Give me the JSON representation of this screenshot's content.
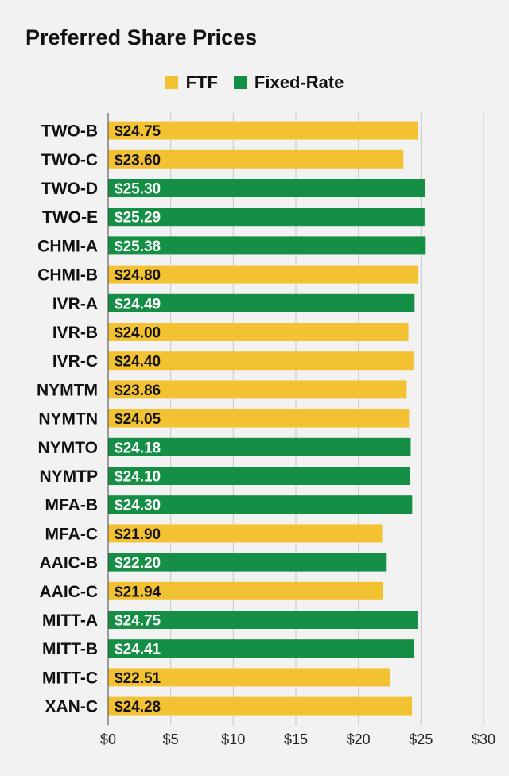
{
  "chart_data": {
    "type": "bar",
    "orientation": "horizontal",
    "title": "Preferred Share Prices",
    "legend": [
      {
        "name": "FTF",
        "color": "#f2c232"
      },
      {
        "name": "Fixed-Rate",
        "color": "#158f45"
      }
    ],
    "legend_position": "top-center",
    "categories": [
      "TWO-B",
      "TWO-C",
      "TWO-D",
      "TWO-E",
      "CHMI-A",
      "CHMI-B",
      "IVR-A",
      "IVR-B",
      "IVR-C",
      "NYMTM",
      "NYMTN",
      "NYMTO",
      "NYMTP",
      "MFA-B",
      "MFA-C",
      "AAIC-B",
      "AAIC-C",
      "MITT-A",
      "MITT-B",
      "MITT-C",
      "XAN-C"
    ],
    "values": [
      24.75,
      23.6,
      25.3,
      25.29,
      25.38,
      24.8,
      24.49,
      24.0,
      24.4,
      23.86,
      24.05,
      24.18,
      24.1,
      24.3,
      21.9,
      22.2,
      21.94,
      24.75,
      24.41,
      22.51,
      24.28
    ],
    "value_labels": [
      "$24.75",
      "$23.60",
      "$25.30",
      "$25.29",
      "$25.38",
      "$24.80",
      "$24.49",
      "$24.00",
      "$24.40",
      "$23.86",
      "$24.05",
      "$24.18",
      "$24.10",
      "$24.30",
      "$21.90",
      "$22.20",
      "$21.94",
      "$24.75",
      "$24.41",
      "$22.51",
      "$24.28"
    ],
    "series_type": [
      "FTF",
      "FTF",
      "Fixed-Rate",
      "Fixed-Rate",
      "Fixed-Rate",
      "FTF",
      "Fixed-Rate",
      "FTF",
      "FTF",
      "FTF",
      "FTF",
      "Fixed-Rate",
      "Fixed-Rate",
      "Fixed-Rate",
      "FTF",
      "Fixed-Rate",
      "FTF",
      "Fixed-Rate",
      "Fixed-Rate",
      "FTF",
      "FTF"
    ],
    "xlim": [
      0,
      30
    ],
    "x_ticks": [
      0,
      5,
      10,
      15,
      20,
      25,
      30
    ],
    "x_tick_labels": [
      "$0",
      "$5",
      "$10",
      "$15",
      "$20",
      "$25",
      "$30"
    ],
    "grid": true,
    "xlabel": "",
    "ylabel": ""
  }
}
